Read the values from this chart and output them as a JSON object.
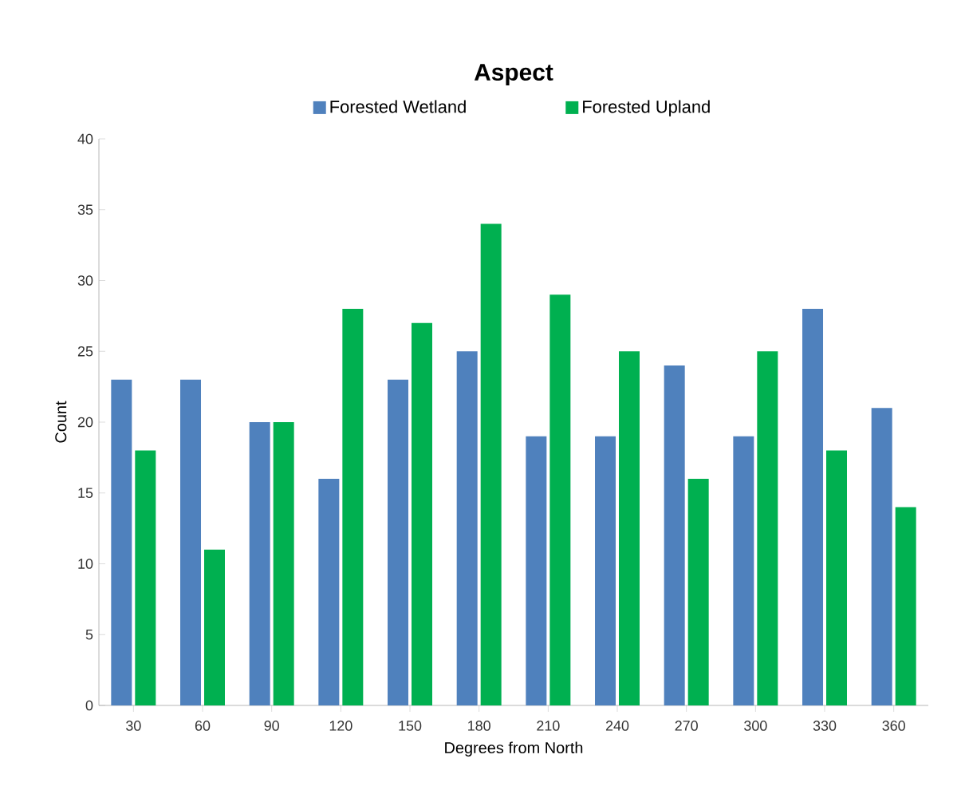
{
  "chart_data": {
    "type": "bar",
    "title": "Aspect",
    "xlabel": "Degrees from North",
    "ylabel": "Count",
    "categories": [
      "30",
      "60",
      "90",
      "120",
      "150",
      "180",
      "210",
      "240",
      "270",
      "300",
      "330",
      "360"
    ],
    "series": [
      {
        "name": "Forested Wetland",
        "color": "#4f81bd",
        "values": [
          23,
          23,
          20,
          16,
          23,
          25,
          19,
          19,
          24,
          19,
          28,
          21
        ]
      },
      {
        "name": "Forested Upland",
        "color": "#00b050",
        "values": [
          18,
          11,
          20,
          28,
          27,
          34,
          29,
          25,
          16,
          25,
          18,
          14
        ]
      }
    ],
    "ylim": [
      0,
      40
    ],
    "yticks": [
      0,
      5,
      10,
      15,
      20,
      25,
      30,
      35,
      40
    ],
    "legend": "top",
    "grid": false
  }
}
